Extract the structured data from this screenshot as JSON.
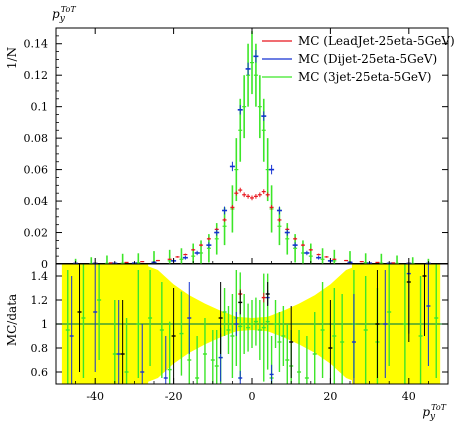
{
  "colors": {
    "red": "#e8141c",
    "blue": "#1432d2",
    "green": "#3ce628",
    "yellow": "#ffff00",
    "data": "#000000",
    "ratio_line": "#1e8c3c"
  },
  "chart_data": [
    {
      "panel": "main",
      "type": "scatter",
      "title": "",
      "ylabel": "1/N",
      "xlabel": "",
      "xlim": [
        -50,
        50
      ],
      "ylim": [
        0,
        0.15
      ],
      "yticks": [
        0,
        0.02,
        0.04,
        0.06,
        0.08,
        0.1,
        0.12,
        0.14
      ],
      "ytick_labels": [
        "0",
        "0.02",
        "0.04",
        "0.06",
        "0.08",
        "0.1",
        "0.12",
        "0.14"
      ],
      "y_unit_label": "p_y^{ToT}",
      "legend": "top-right",
      "series": [
        {
          "name": "MC (LeadJet-25eta-5GeV)",
          "color": "red",
          "x": [
            -45,
            -40,
            -36,
            -32,
            -28,
            -24,
            -21,
            -19,
            -17,
            -15,
            -13,
            -11,
            -9,
            -7,
            -5,
            -4,
            -3,
            -2,
            -1,
            0,
            1,
            2,
            3,
            4,
            5,
            7,
            9,
            11,
            13,
            15,
            17,
            19,
            21,
            24,
            28,
            32,
            36,
            40,
            45
          ],
          "y": [
            0.0004,
            0.0005,
            0.0007,
            0.001,
            0.0015,
            0.0022,
            0.003,
            0.0045,
            0.006,
            0.009,
            0.012,
            0.016,
            0.022,
            0.028,
            0.036,
            0.045,
            0.047,
            0.044,
            0.043,
            0.042,
            0.043,
            0.044,
            0.046,
            0.044,
            0.036,
            0.028,
            0.022,
            0.016,
            0.012,
            0.009,
            0.006,
            0.0045,
            0.003,
            0.0022,
            0.0015,
            0.001,
            0.0007,
            0.0005,
            0.0004
          ],
          "err": [
            0.0002,
            0.0002,
            0.0002,
            0.0002,
            0.0003,
            0.0004,
            0.0005,
            0.0005,
            0.0006,
            0.0007,
            0.0008,
            0.0009,
            0.001,
            0.0012,
            0.0015,
            0.0015,
            0.0015,
            0.0015,
            0.0015,
            0.0015,
            0.0015,
            0.0015,
            0.0015,
            0.0015,
            0.0015,
            0.0012,
            0.001,
            0.0009,
            0.0008,
            0.0007,
            0.0006,
            0.0005,
            0.0005,
            0.0004,
            0.0003,
            0.0002,
            0.0002,
            0.0002,
            0.0002
          ]
        },
        {
          "name": "MC (Dijet-25eta-5GeV)",
          "color": "blue",
          "x": [
            -45,
            -40,
            -35,
            -30,
            -25,
            -20,
            -17,
            -14,
            -11,
            -9,
            -7,
            -5,
            -3,
            -1,
            1,
            3,
            5,
            7,
            9,
            11,
            14,
            17,
            20,
            25,
            30,
            35,
            40,
            45
          ],
          "y": [
            0.0003,
            0.0003,
            0.0004,
            0.0005,
            0.001,
            0.002,
            0.004,
            0.007,
            0.012,
            0.02,
            0.034,
            0.062,
            0.098,
            0.124,
            0.132,
            0.094,
            0.06,
            0.034,
            0.02,
            0.012,
            0.007,
            0.004,
            0.002,
            0.001,
            0.0005,
            0.0004,
            0.0003,
            0.0003
          ],
          "err": [
            0.0008,
            0.0008,
            0.0008,
            0.0008,
            0.0009,
            0.001,
            0.0012,
            0.0014,
            0.0018,
            0.002,
            0.0025,
            0.003,
            0.003,
            0.004,
            0.004,
            0.003,
            0.003,
            0.0025,
            0.002,
            0.0018,
            0.0014,
            0.0012,
            0.001,
            0.0009,
            0.0008,
            0.0008,
            0.0008,
            0.0008
          ]
        },
        {
          "name": "MC (3jet-25eta-5GeV)",
          "color": "green",
          "x": [
            -45,
            -41,
            -37,
            -33,
            -29,
            -25,
            -21,
            -18,
            -15,
            -13,
            -11,
            -9,
            -7,
            -5,
            -4,
            -3,
            -2,
            -1,
            0,
            1,
            2,
            3,
            4,
            5,
            7,
            9,
            11,
            13,
            15,
            18,
            21,
            25,
            29,
            33,
            37,
            41,
            45
          ],
          "y": [
            0.0003,
            0.0003,
            0.0004,
            0.0005,
            0.0008,
            0.0012,
            0.002,
            0.003,
            0.005,
            0.007,
            0.01,
            0.016,
            0.024,
            0.035,
            0.06,
            0.085,
            0.1,
            0.12,
            0.128,
            0.12,
            0.1,
            0.085,
            0.06,
            0.035,
            0.024,
            0.016,
            0.01,
            0.007,
            0.005,
            0.003,
            0.002,
            0.0012,
            0.0008,
            0.0005,
            0.0004,
            0.0003,
            0.0003
          ],
          "err": [
            0.003,
            0.004,
            0.005,
            0.006,
            0.006,
            0.007,
            0.007,
            0.007,
            0.008,
            0.008,
            0.009,
            0.01,
            0.012,
            0.015,
            0.02,
            0.02,
            0.02,
            0.02,
            0.02,
            0.02,
            0.02,
            0.02,
            0.02,
            0.015,
            0.012,
            0.01,
            0.009,
            0.008,
            0.008,
            0.007,
            0.007,
            0.007,
            0.006,
            0.006,
            0.005,
            0.004,
            0.003
          ]
        }
      ]
    },
    {
      "panel": "ratio",
      "type": "scatter",
      "ylabel": "MC/data",
      "xlabel": "p_y^{ToT}",
      "xlim": [
        -50,
        50
      ],
      "ylim": [
        0.5,
        1.5
      ],
      "yticks": [
        0.6,
        0.8,
        1,
        1.2,
        1.4
      ],
      "ytick_labels": [
        "0.6",
        "0.8",
        "1",
        "1.2",
        "1.4"
      ],
      "xticks": [
        -40,
        -20,
        0,
        20,
        40
      ],
      "xtick_labels": [
        "-40",
        "-20",
        "0",
        "20",
        "40"
      ],
      "reference_line": 1,
      "uncertainty_band": {
        "x": [
          -48,
          -38,
          -28,
          -24,
          -20,
          -16,
          -12,
          -8,
          -4,
          0,
          4,
          8,
          12,
          16,
          20,
          24,
          28,
          38,
          48
        ],
        "half_width": [
          0.5,
          0.5,
          0.5,
          0.45,
          0.33,
          0.24,
          0.17,
          0.11,
          0.06,
          0.05,
          0.06,
          0.11,
          0.17,
          0.24,
          0.33,
          0.45,
          0.5,
          0.5,
          0.5
        ]
      },
      "yellow_full_columns": [
        [
          -48.5,
          -45
        ],
        [
          -43.5,
          -41.5
        ],
        [
          -37.5,
          -26.5
        ],
        [
          25.5,
          27.5
        ],
        [
          37.5,
          43
        ],
        [
          44.5,
          46
        ]
      ],
      "series": [
        {
          "color": "green",
          "x": [
            -47,
            -43,
            -39,
            -35,
            -32,
            -29,
            -26,
            -23,
            -21,
            -18,
            -16,
            -14,
            -12,
            -10,
            -9,
            -8,
            -7,
            -6,
            -5,
            -4,
            -3,
            -2,
            -1,
            0,
            1,
            2,
            3,
            4,
            5,
            6,
            7,
            8,
            9,
            10,
            12,
            14,
            16,
            18,
            21,
            23,
            26,
            29,
            32,
            35,
            39,
            43,
            47
          ],
          "y": [
            0.95,
            1.05,
            1.2,
            0.75,
            0.6,
            1.0,
            1.05,
            0.95,
            0.62,
            0.92,
            0.7,
            0.55,
            0.75,
            0.7,
            0.65,
            0.72,
            1.1,
            0.95,
            0.9,
            1.05,
            0.98,
            1.0,
            0.97,
            1.0,
            1.02,
            0.95,
            0.97,
            1.02,
            0.55,
            1.0,
            0.85,
            0.9,
            0.7,
            0.65,
            0.6,
            0.55,
            0.75,
            0.95,
            0.9,
            0.85,
            1.0,
            0.95,
            0.85,
            1.1,
            1.0,
            0.9,
            1.05
          ],
          "err": [
            0.5,
            0.5,
            0.5,
            0.45,
            0.45,
            0.45,
            0.4,
            0.4,
            0.4,
            0.35,
            0.3,
            0.35,
            0.3,
            0.25,
            0.3,
            0.25,
            0.2,
            0.2,
            0.35,
            0.4,
            0.45,
            0.25,
            0.2,
            0.2,
            0.2,
            0.25,
            0.45,
            0.4,
            0.35,
            0.2,
            0.25,
            0.25,
            0.3,
            0.3,
            0.35,
            0.35,
            0.35,
            0.4,
            0.4,
            0.4,
            0.45,
            0.45,
            0.45,
            0.45,
            0.5,
            0.5,
            0.5
          ]
        },
        {
          "color": "blue",
          "x": [
            -46,
            -40,
            -34,
            -28,
            -22,
            -16,
            -8,
            -4,
            -3,
            4,
            5,
            26,
            34,
            40,
            45
          ],
          "y": [
            0.9,
            1.1,
            0.75,
            0.6,
            0.55,
            1.05,
            0.72,
            1.0,
            0.55,
            1.22,
            0.58,
            0.85,
            1.0,
            1.42,
            1.15
          ],
          "err": [
            0.5,
            0.5,
            0.45,
            0.4,
            0.35,
            0.3,
            0.2,
            0.1,
            0.06,
            0.06,
            0.08,
            0.4,
            0.45,
            0.5,
            0.5
          ]
        },
        {
          "color": "red",
          "x": [
            -3,
            3
          ],
          "y": [
            1.25,
            1.22
          ],
          "err": [
            0.04,
            0.04
          ]
        },
        {
          "color": "data",
          "x": [
            -44,
            -33,
            -20,
            -8,
            -3,
            4,
            10,
            20,
            32,
            40,
            44
          ],
          "y": [
            1.1,
            0.75,
            0.9,
            1.05,
            1.18,
            1.25,
            0.85,
            0.8,
            1.0,
            1.35,
            1.4
          ],
          "err": [
            0.5,
            0.45,
            0.4,
            0.3,
            0.1,
            0.1,
            0.3,
            0.4,
            0.45,
            0.5,
            0.5
          ]
        }
      ]
    }
  ]
}
